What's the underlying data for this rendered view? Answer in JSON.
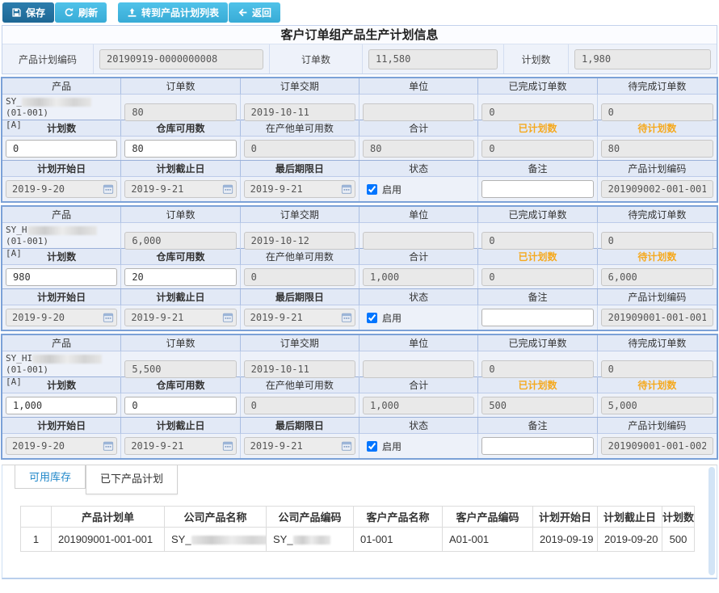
{
  "toolbar": {
    "save_label": "保存",
    "refresh_label": "刷新",
    "goto_list_label": "转到产品计划列表",
    "back_label": "返回"
  },
  "header": {
    "title": "客户订单组产品生产计划信息",
    "plan_code_label": "产品计划编码",
    "plan_code_value": "20190919-0000000008",
    "order_qty_label": "订单数",
    "order_qty_value": "11,580",
    "plan_qty_label": "计划数",
    "plan_qty_value": "1,980"
  },
  "labels": {
    "product": "产品",
    "order_qty": "订单数",
    "order_due": "订单交期",
    "unit": "单位",
    "completed_order_qty": "已完成订单数",
    "pending_order_qty": "待完成订单数",
    "plan_qty": "计划数",
    "warehouse_available": "仓库可用数",
    "other_order_available": "在产他单可用数",
    "total": "合计",
    "planned_qty": "已计划数",
    "to_plan_qty": "待计划数",
    "plan_start": "计划开始日",
    "plan_end": "计划截止日",
    "deadline": "最后期限日",
    "status": "状态",
    "remark": "备注",
    "plan_code": "产品计划编码",
    "enabled": "启用"
  },
  "blocks": [
    {
      "product": {
        "prefix": "SY_",
        "suffix": "(01-001)",
        "line2": "[A]"
      },
      "order_qty": "80",
      "order_due": "2019-10-11",
      "unit": "",
      "completed_order_qty": "0",
      "pending_order_qty": "0",
      "plan_qty": "0",
      "warehouse_available": "80",
      "other_order_available": "0",
      "total": "80",
      "planned_qty": "0",
      "to_plan_qty": "80",
      "plan_start": "2019-9-20",
      "plan_end": "2019-9-21",
      "deadline": "2019-9-21",
      "enabled": true,
      "remark": "",
      "plan_code": "201909002-001-001"
    },
    {
      "product": {
        "prefix": "SY_H",
        "suffix": "(01-001)",
        "line2": "[A]"
      },
      "order_qty": "6,000",
      "order_due": "2019-10-12",
      "unit": "",
      "completed_order_qty": "0",
      "pending_order_qty": "0",
      "plan_qty": "980",
      "warehouse_available": "20",
      "other_order_available": "0",
      "total": "1,000",
      "planned_qty": "0",
      "to_plan_qty": "6,000",
      "plan_start": "2019-9-20",
      "plan_end": "2019-9-21",
      "deadline": "2019-9-21",
      "enabled": true,
      "remark": "",
      "plan_code": "201909001-001-001"
    },
    {
      "product": {
        "prefix": "SY_HI",
        "suffix": "(01-001)",
        "line2": "[A]"
      },
      "order_qty": "5,500",
      "order_due": "2019-10-11",
      "unit": "",
      "completed_order_qty": "0",
      "pending_order_qty": "0",
      "plan_qty": "1,000",
      "warehouse_available": "0",
      "other_order_available": "0",
      "total": "1,000",
      "planned_qty": "500",
      "to_plan_qty": "5,000",
      "plan_start": "2019-9-20",
      "plan_end": "2019-9-21",
      "deadline": "2019-9-21",
      "enabled": true,
      "remark": "",
      "plan_code": "201909001-001-002"
    }
  ],
  "tabs": [
    {
      "label": "可用库存",
      "active": false
    },
    {
      "label": "已下产品计划",
      "active": true
    }
  ],
  "bottom_table": {
    "headers": [
      "",
      "产品计划单",
      "公司产品名称",
      "公司产品编码",
      "客户产品名称",
      "客户产品编码",
      "计划开始日",
      "计划截止日",
      "计划数"
    ],
    "rows": [
      [
        "1",
        "201909001-001-001",
        "SY_",
        "SY_",
        "01-001",
        "A01-001",
        "2019-09-19",
        "2019-09-20",
        "500"
      ]
    ]
  },
  "colors": {
    "toolbar_dark_button": "#1d6795",
    "toolbar_light_button": "#38abd6",
    "block_border": "#7ba1d7",
    "header_cell_bg": "#e2e9f6",
    "orange_header_text": "#f5a91f",
    "inactive_tab_text": "#1f87c9"
  }
}
